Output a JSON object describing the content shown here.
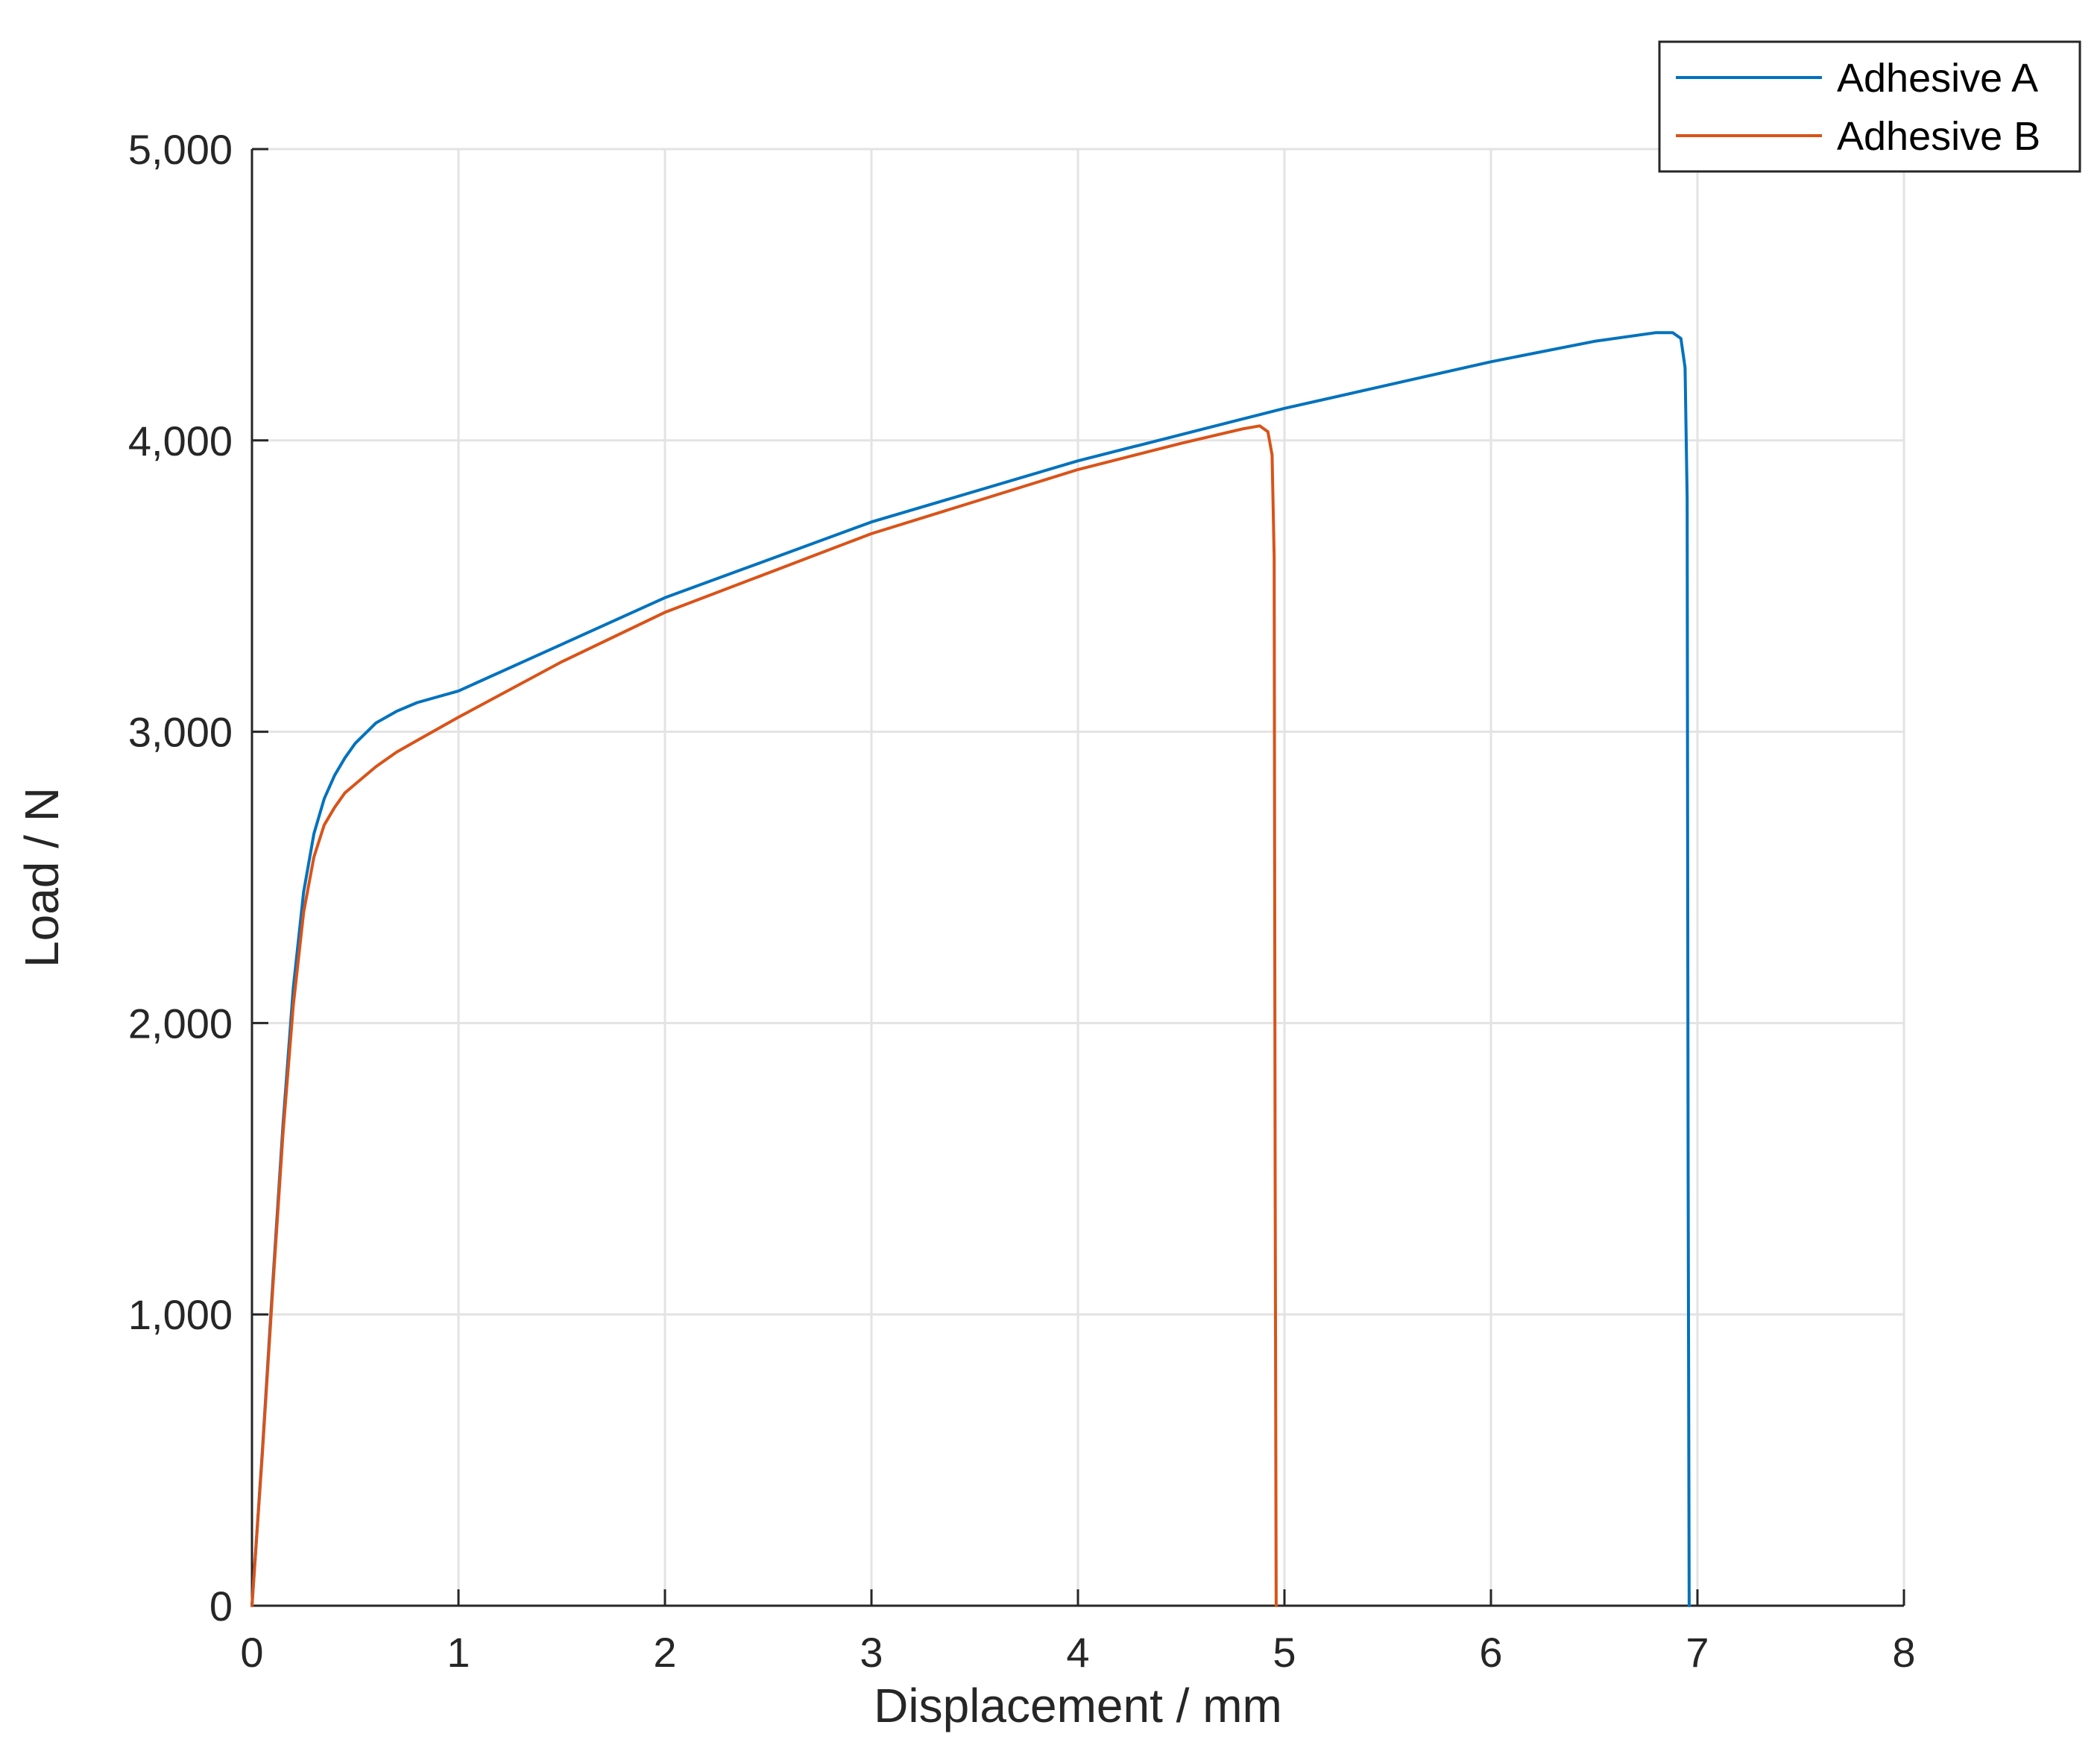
{
  "chart_data": {
    "type": "line",
    "title": "",
    "xlabel": "Displacement / mm",
    "ylabel": "Load / N",
    "xlim": [
      0,
      8
    ],
    "ylim": [
      0,
      5000
    ],
    "xticks": [
      0,
      1,
      2,
      3,
      4,
      5,
      6,
      7,
      8
    ],
    "yticks": [
      0,
      1000,
      2000,
      3000,
      4000,
      5000
    ],
    "xtick_labels": [
      "0",
      "1",
      "2",
      "3",
      "4",
      "5",
      "6",
      "7",
      "8"
    ],
    "ytick_labels": [
      "0",
      "1,000",
      "2,000",
      "3,000",
      "4,000",
      "5,000"
    ],
    "grid": true,
    "legend_position": "top-right",
    "series": [
      {
        "name": "Adhesive A",
        "color": "#0072BD",
        "x": [
          0,
          0.05,
          0.1,
          0.15,
          0.2,
          0.25,
          0.3,
          0.35,
          0.4,
          0.45,
          0.5,
          0.6,
          0.7,
          0.8,
          1.0,
          1.5,
          2.0,
          3.0,
          4.0,
          5.0,
          6.0,
          6.5,
          6.8,
          6.88,
          6.92,
          6.94,
          6.95,
          6.955,
          6.96
        ],
        "y": [
          0,
          530,
          1100,
          1650,
          2120,
          2450,
          2650,
          2770,
          2850,
          2910,
          2960,
          3030,
          3070,
          3100,
          3140,
          3300,
          3460,
          3720,
          3930,
          4110,
          4270,
          4340,
          4370,
          4370,
          4350,
          4250,
          3800,
          1500,
          0
        ]
      },
      {
        "name": "Adhesive B",
        "color": "#D95319",
        "x": [
          0,
          0.05,
          0.1,
          0.15,
          0.2,
          0.25,
          0.3,
          0.35,
          0.4,
          0.45,
          0.5,
          0.6,
          0.7,
          0.8,
          1.0,
          1.5,
          2.0,
          3.0,
          4.0,
          4.5,
          4.8,
          4.88,
          4.92,
          4.94,
          4.95,
          4.955,
          4.96
        ],
        "y": [
          0,
          520,
          1080,
          1620,
          2060,
          2380,
          2570,
          2680,
          2740,
          2790,
          2820,
          2880,
          2930,
          2970,
          3050,
          3240,
          3410,
          3680,
          3900,
          3990,
          4040,
          4050,
          4030,
          3950,
          3600,
          1500,
          0
        ]
      }
    ]
  }
}
